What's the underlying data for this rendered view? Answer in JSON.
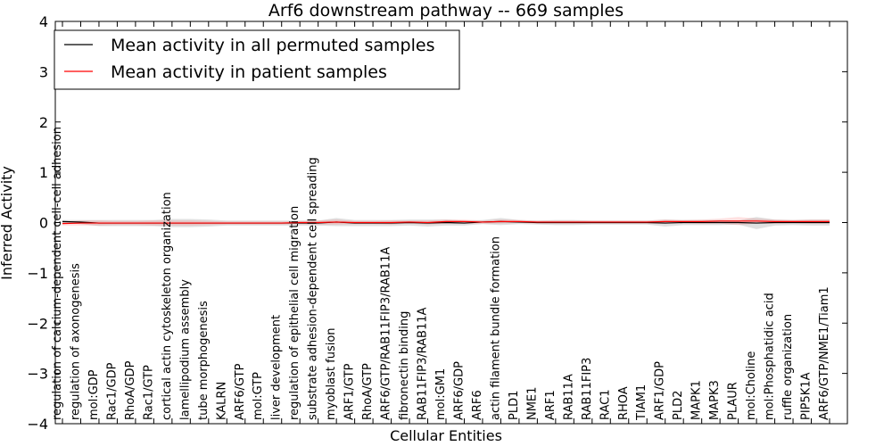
{
  "chart_data": {
    "type": "line",
    "title": "Arf6 downstream pathway -- 669 samples",
    "xlabel": "Cellular Entities",
    "ylabel": "Inferred Activity",
    "ylim": [
      -4,
      4
    ],
    "yticks": [
      -4,
      -3,
      -2,
      -1,
      0,
      1,
      2,
      3,
      4
    ],
    "ytick_labels": [
      "−4",
      "−3",
      "−2",
      "−1",
      "0",
      "1",
      "2",
      "3",
      "4"
    ],
    "legend_position": "top-left",
    "categories": [
      "regulation of calcium-dependent cell-cell adhesion",
      "regulation of axonogenesis",
      "mol:GDP",
      "Rac1/GDP",
      "RhoA/GDP",
      "Rac1/GTP",
      "cortical actin cytoskeleton organization",
      "lamellipodium assembly",
      "tube morphogenesis",
      "KALRN",
      "ARF6/GTP",
      "mol:GTP",
      "liver development",
      "regulation of epithelial cell migration",
      "substrate adhesion-dependent cell spreading",
      "myoblast fusion",
      "ARF1/GTP",
      "RhoA/GTP",
      "ARF6/GTP/RAB11FIP3/RAB11A",
      "fibronectin binding",
      "RAB11FIP3/RAB11A",
      "mol:GM1",
      "ARF6/GDP",
      "ARF6",
      "actin filament bundle formation",
      "PLD1",
      "NME1",
      "ARF1",
      "RAB11A",
      "RAB11FIP3",
      "RAC1",
      "RHOA",
      "TIAM1",
      "ARF1/GDP",
      "PLD2",
      "MAPK1",
      "MAPK3",
      "PLAUR",
      "mol:Choline",
      "mol:Phosphatidic acid",
      "ruffle organization",
      "PIP5K1A",
      "ARF6/GTP/NME1/Tiam1"
    ],
    "series": [
      {
        "name": "Mean activity in all permuted samples",
        "color": "#000000",
        "values": [
          0.02,
          0.01,
          -0.01,
          -0.01,
          -0.01,
          -0.01,
          -0.01,
          -0.01,
          -0.01,
          -0.01,
          -0.01,
          -0.01,
          -0.01,
          -0.01,
          -0.01,
          0.01,
          -0.01,
          -0.01,
          -0.01,
          0.0,
          -0.01,
          0.0,
          -0.01,
          0.01,
          0.02,
          0.01,
          0.0,
          0.0,
          0.0,
          0.0,
          0.0,
          0.0,
          0.0,
          -0.01,
          0.0,
          0.0,
          0.0,
          0.0,
          -0.01,
          0.0,
          0.0,
          0.0,
          0.0
        ],
        "band": [
          0.03,
          0.04,
          0.06,
          0.06,
          0.06,
          0.06,
          0.08,
          0.08,
          0.07,
          0.05,
          0.05,
          0.05,
          0.05,
          0.05,
          0.05,
          0.08,
          0.06,
          0.06,
          0.06,
          0.06,
          0.07,
          0.06,
          0.05,
          0.04,
          0.07,
          0.04,
          0.04,
          0.05,
          0.05,
          0.04,
          0.04,
          0.04,
          0.04,
          0.07,
          0.05,
          0.05,
          0.05,
          0.04,
          0.12,
          0.06,
          0.05,
          0.06,
          0.06
        ]
      },
      {
        "name": "Mean activity in patient samples",
        "color": "#ff0000",
        "values": [
          -0.02,
          -0.01,
          -0.01,
          -0.01,
          -0.01,
          -0.01,
          -0.01,
          -0.01,
          -0.01,
          -0.01,
          -0.01,
          -0.01,
          -0.01,
          0.0,
          0.0,
          0.01,
          0.0,
          0.0,
          0.0,
          0.01,
          0.0,
          0.02,
          0.02,
          0.01,
          0.02,
          0.02,
          0.01,
          0.01,
          0.01,
          0.01,
          0.01,
          0.01,
          0.01,
          0.02,
          0.02,
          0.02,
          0.03,
          0.03,
          0.03,
          0.02,
          0.02,
          0.02,
          0.02
        ],
        "band": [
          0.04,
          0.05,
          0.05,
          0.04,
          0.04,
          0.05,
          0.05,
          0.05,
          0.04,
          0.03,
          0.03,
          0.03,
          0.03,
          0.03,
          0.04,
          0.05,
          0.03,
          0.03,
          0.04,
          0.03,
          0.04,
          0.04,
          0.04,
          0.03,
          0.04,
          0.03,
          0.03,
          0.03,
          0.03,
          0.03,
          0.03,
          0.03,
          0.03,
          0.04,
          0.03,
          0.04,
          0.05,
          0.08,
          0.05,
          0.04,
          0.03,
          0.04,
          0.04
        ]
      }
    ]
  }
}
